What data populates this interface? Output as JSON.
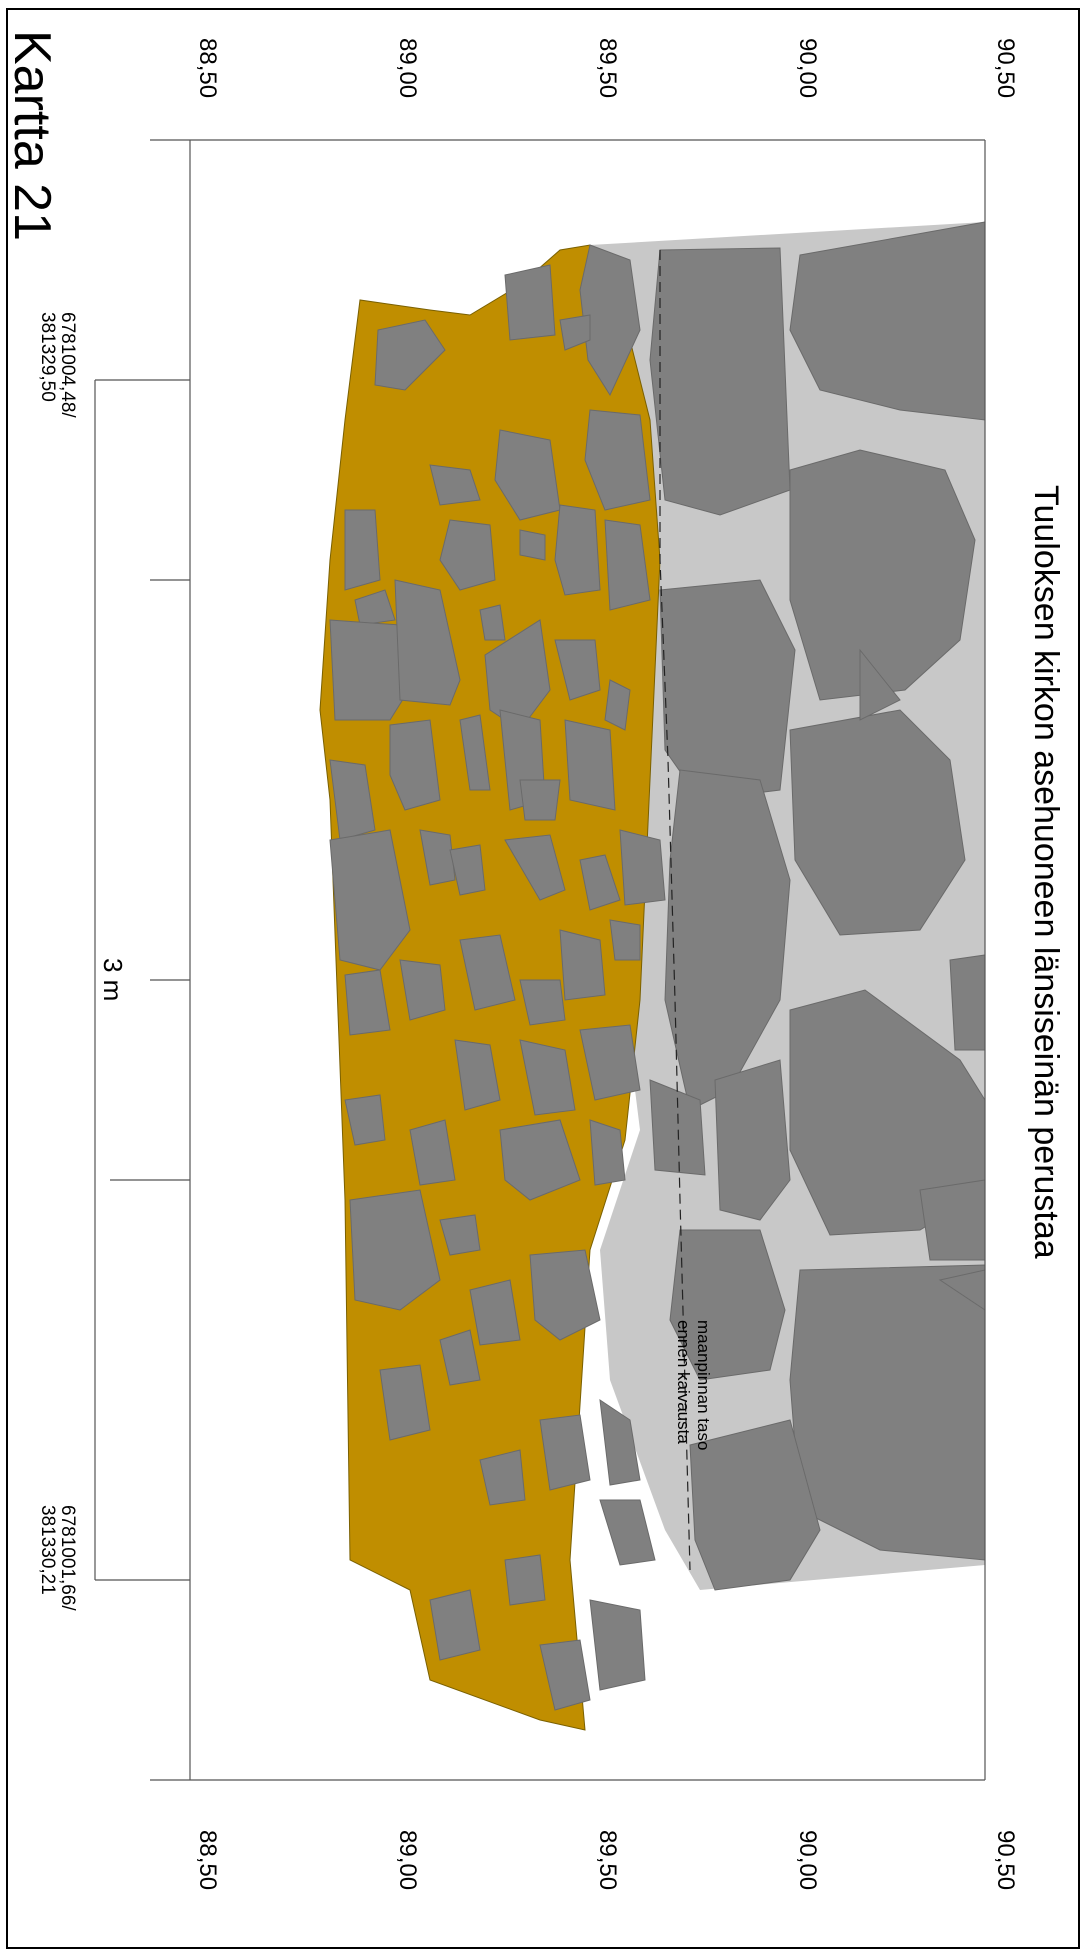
{
  "map": {
    "title": "Kartta 21",
    "subtitle": "Tuuloksen kirkon asehuoneen länsiseinän perustaa",
    "elevation_ticks": [
      "88,50",
      "89,00",
      "89,50",
      "90,00",
      "90,50"
    ],
    "scale_label": "3 m",
    "coord_top": {
      "line1": "6781004,48/",
      "line2": "381329,50"
    },
    "coord_bottom": {
      "line1": "6781001,66/",
      "line2": "381330,21"
    },
    "annotation": {
      "line1": "maanpinnan taso",
      "line2": "ennen kaivausta"
    }
  },
  "colors": {
    "fill_layer": "#c08e00",
    "stone": "#808080",
    "mortar": "#c8c8c8",
    "lines": "#555555"
  }
}
